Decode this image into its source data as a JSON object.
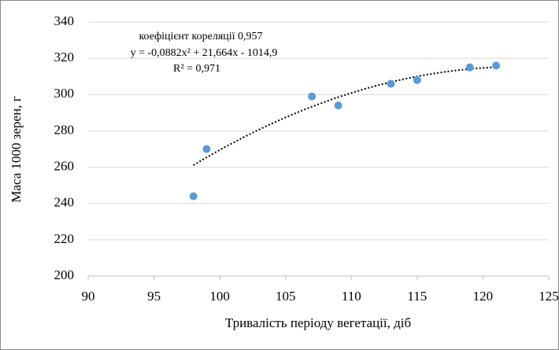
{
  "chart_data": {
    "type": "scatter",
    "annotations": [
      "коефіцієнт кореляції 0,957",
      "y = -0,0882x² + 21,664x - 1014,9",
      "R² = 0,971"
    ],
    "x_label": "Тривалість періоду вегетації, діб",
    "y_label": "Маса 1000 зерен, г",
    "series": [
      {
        "name": "Маса 1000 зерен",
        "color": "#5b9bd5",
        "x": [
          98,
          99,
          107,
          109,
          113,
          115,
          119,
          121
        ],
        "values": [
          244,
          270,
          299,
          294,
          306,
          308,
          315,
          316
        ]
      }
    ],
    "trendline": {
      "type": "polynomial",
      "coefficients": [
        -0.0882,
        21.664,
        -1014.9
      ],
      "xrange": [
        98,
        121
      ],
      "color": "#000000"
    },
    "xlim": [
      90,
      125
    ],
    "xticks": [
      90,
      95,
      100,
      105,
      110,
      115,
      120,
      125
    ],
    "ylim": [
      200,
      340
    ],
    "yticks": [
      200,
      220,
      240,
      260,
      280,
      300,
      320,
      340
    ],
    "grid": true
  }
}
